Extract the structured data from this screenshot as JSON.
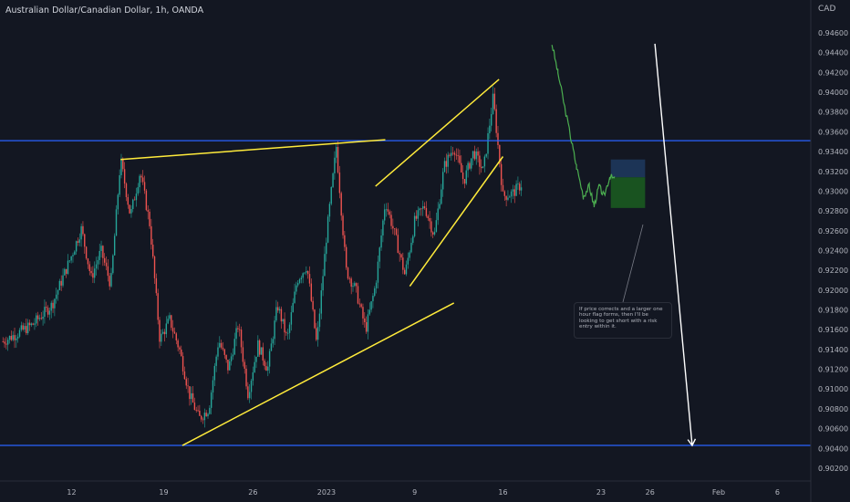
{
  "header": {
    "symbol_title": "Australian Dollar/Canadian Dollar, 1h, OANDA",
    "currency": "CAD"
  },
  "colors": {
    "background": "#131722",
    "up_candle": "#26a69a",
    "down_candle": "#ef5350",
    "trendline": "#ffeb3b",
    "horizontal_level": "#2962ff",
    "projection_path": "#4caf50",
    "forecast_arrow": "#ffffff",
    "risk_zone": "#1e3a5f",
    "reward_zone": "#1b5e20"
  },
  "annotation": {
    "text": "If price corrects and a larger one hour flag forms, then I'll be looking to get short with a risk entry within it."
  },
  "chart_data": {
    "type": "candlestick",
    "title": "Australian Dollar/Canadian Dollar, 1h, OANDA",
    "x_ticks": [
      "12",
      "19",
      "26",
      "2023",
      "9",
      "16",
      "23",
      "26",
      "Feb",
      "6"
    ],
    "y_ticks": [
      "0.94600",
      "0.94400",
      "0.94200",
      "0.94000",
      "0.93800",
      "0.93600",
      "0.93400",
      "0.93200",
      "0.93000",
      "0.92800",
      "0.92600",
      "0.92400",
      "0.92200",
      "0.92000",
      "0.91800",
      "0.91600",
      "0.91400",
      "0.91200",
      "0.91000",
      "0.90800",
      "0.90600",
      "0.90400",
      "0.90200"
    ],
    "ylim": [
      0.901,
      0.9475
    ],
    "grid": false,
    "axis_side": "right",
    "price_path": [
      [
        0,
        0.9148
      ],
      [
        3,
        0.9165
      ],
      [
        5,
        0.9185
      ],
      [
        7,
        0.9235
      ],
      [
        8,
        0.9262
      ],
      [
        9,
        0.9212
      ],
      [
        10,
        0.924
      ],
      [
        11,
        0.9205
      ],
      [
        12,
        0.9332
      ],
      [
        13,
        0.9275
      ],
      [
        14,
        0.932
      ],
      [
        15,
        0.9265
      ],
      [
        16,
        0.915
      ],
      [
        17,
        0.917
      ],
      [
        18,
        0.914
      ],
      [
        19,
        0.9095
      ],
      [
        20,
        0.907
      ],
      [
        21,
        0.908
      ],
      [
        22,
        0.915
      ],
      [
        23,
        0.912
      ],
      [
        24,
        0.9165
      ],
      [
        25,
        0.9095
      ],
      [
        26,
        0.9145
      ],
      [
        27,
        0.912
      ],
      [
        28,
        0.9185
      ],
      [
        29,
        0.915
      ],
      [
        30,
        0.921
      ],
      [
        31,
        0.9225
      ],
      [
        32,
        0.9145
      ],
      [
        33,
        0.9255
      ],
      [
        34,
        0.9345
      ],
      [
        35,
        0.922
      ],
      [
        36,
        0.92
      ],
      [
        37,
        0.916
      ],
      [
        38,
        0.9205
      ],
      [
        39,
        0.929
      ],
      [
        40,
        0.9255
      ],
      [
        41,
        0.9215
      ],
      [
        42,
        0.927
      ],
      [
        43,
        0.9285
      ],
      [
        44,
        0.9255
      ],
      [
        45,
        0.9325
      ],
      [
        46,
        0.9345
      ],
      [
        47,
        0.931
      ],
      [
        48,
        0.934
      ],
      [
        49,
        0.932
      ],
      [
        50,
        0.9395
      ],
      [
        51,
        0.9295
      ],
      [
        52,
        0.9298
      ],
      [
        53,
        0.9308
      ]
    ],
    "horizontal_levels": [
      0.9351,
      0.9043
    ],
    "trendlines": [
      {
        "from": [
          12,
          0.9332
        ],
        "to": [
          39,
          0.9352
        ]
      },
      {
        "from": [
          18.3,
          0.9043
        ],
        "to": [
          46,
          0.9187
        ]
      },
      {
        "from": [
          38,
          0.9305
        ],
        "to": [
          50.6,
          0.9413
        ]
      },
      {
        "from": [
          41.5,
          0.9204
        ],
        "to": [
          51,
          0.9335
        ]
      }
    ],
    "projection_path": [
      [
        56,
        0.9449
      ],
      [
        56.6,
        0.942
      ],
      [
        57.3,
        0.9385
      ],
      [
        58,
        0.935
      ],
      [
        58.5,
        0.9325
      ],
      [
        59.2,
        0.9295
      ],
      [
        59.8,
        0.9305
      ],
      [
        60.3,
        0.9285
      ],
      [
        60.8,
        0.9305
      ],
      [
        61.3,
        0.9295
      ],
      [
        61.9,
        0.9315
      ],
      [
        62.4,
        0.9312
      ]
    ],
    "risk_reward_box": {
      "x_start": 62,
      "x_end": 65.5,
      "top": 0.9332,
      "entry": 0.9314,
      "bottom": 0.9283
    },
    "forecast_arrow": {
      "from": [
        66.5,
        0.9449
      ],
      "to": [
        70.3,
        0.9043
      ]
    }
  }
}
